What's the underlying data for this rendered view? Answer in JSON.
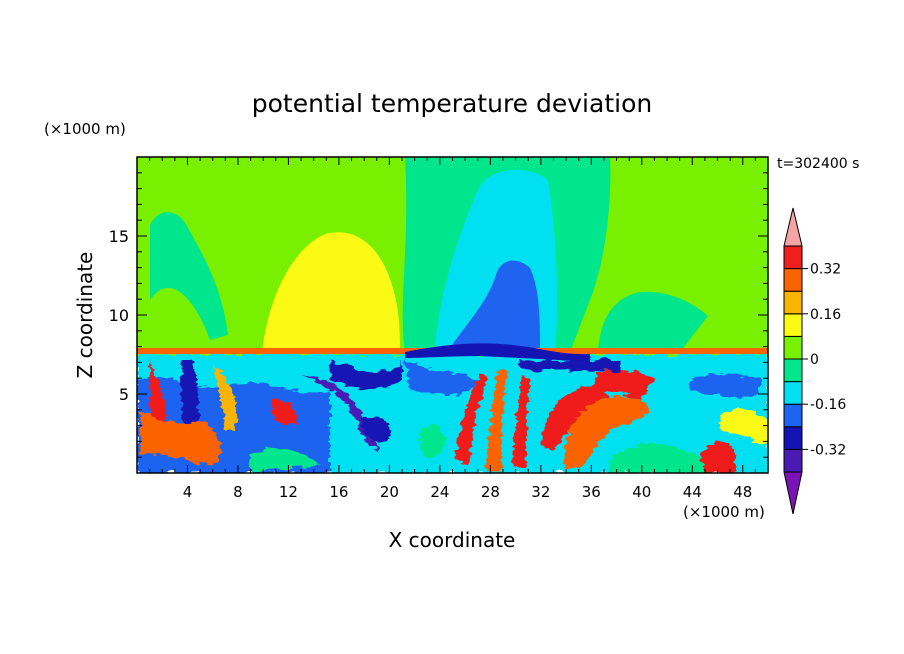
{
  "chart_data": {
    "type": "heatmap",
    "title": "potential temperature deviation",
    "time_label": "t=302400 s",
    "xlabel": "X coordinate",
    "ylabel": "Z coordinate",
    "x_unit": "(×1000 m)",
    "y_unit": "(×1000 m)",
    "xlim": [
      0,
      50
    ],
    "ylim": [
      0,
      20
    ],
    "x_ticks": [
      4,
      8,
      12,
      16,
      20,
      24,
      28,
      32,
      36,
      40,
      44,
      48
    ],
    "y_ticks": [
      5,
      10,
      15
    ],
    "colorbar": {
      "bounds": [
        -0.4,
        -0.32,
        -0.24,
        -0.16,
        -0.08,
        0,
        0.08,
        0.16,
        0.24,
        0.32,
        0.4
      ],
      "tick_labels": [
        "-0.32",
        "-0.16",
        "0",
        "0.16",
        "0.32"
      ],
      "tick_values": [
        -0.32,
        -0.16,
        0,
        0.16,
        0.32
      ],
      "under_color": "#7a14b4",
      "over_color": "#f4a4a4",
      "colors": [
        "#4a1ab4",
        "#1414b4",
        "#1e64f0",
        "#00e0f0",
        "#00e68c",
        "#78f000",
        "#fafa14",
        "#fab400",
        "#fa6400",
        "#f01e1e"
      ]
    }
  }
}
